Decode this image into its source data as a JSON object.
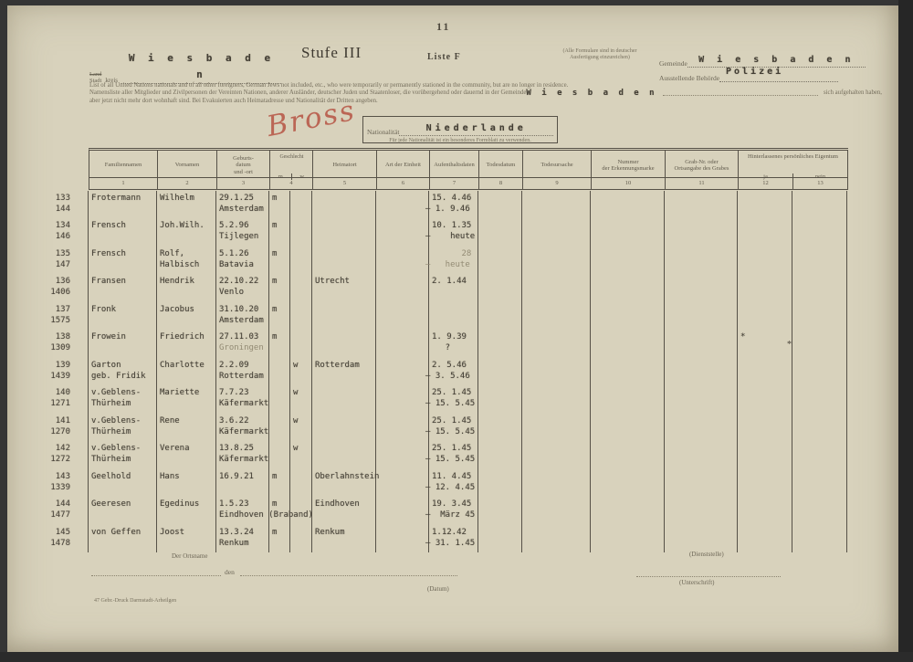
{
  "page": {
    "number": "11"
  },
  "header": {
    "region_struck": "Land",
    "region_label": "Stadt",
    "region_suffix": "kreis",
    "region_value": "W i e s b a d e n",
    "stufe_title": "Stufe III",
    "liste_label": "Liste F",
    "form_note_line1": "(Alle Formulare sind in deutscher",
    "form_note_line2": "Ausfertigung einzureichen)",
    "gemeinde_label": "Gemeinde",
    "gemeinde_value": "W i e s b a d e n",
    "behoerde_label": "Ausstellende Behörde",
    "behoerde_value": "Polizei"
  },
  "intro": {
    "line1": "List of all United Nations nationals and of all other foreigners, German Jews not included, etc., who were temporarily or permanently stationed in the community, but are no longer in residence.",
    "line2a": "Namensliste aller Mitglieder und Zivilpersonen der Vereinten Nationen, anderer Ausländer, deutscher Juden und Staatenloser, die vorübergehend oder dauernd in der Gemeinde",
    "line2_typed": "W i e s b a d e n",
    "line2b": "sich aufgehalten haben,",
    "line3": "aber jetzt nicht mehr dort wohnhaft sind. Bei Evakuierten auch Heimatadresse und Nationalität der Dritten angeben."
  },
  "handwriting": "Bross",
  "nationality_box": {
    "label": "Nationalität",
    "value": "Niederlande",
    "note": "Für jede Nationalität ist ein besonderes Formblatt zu verwenden."
  },
  "table": {
    "headers": {
      "col1": "Familiennamen",
      "col2": "Vornamen",
      "col3_l1": "Geburts-",
      "col3_l2": "datum",
      "col3_l3": "und -ort",
      "col4": "Geschlecht",
      "col4_m": "m",
      "col4_w": "w",
      "col5": "Heimatort",
      "col6": "Art der Einheit",
      "col7": "Aufenthaltsdaten",
      "col8": "Todesdatum",
      "col9": "Todesursache",
      "col10_l1": "Nummer",
      "col10_l2": "der Erkennungsmarke",
      "col11_l1": "Grab-Nr. oder",
      "col11_l2": "Ortsangabe des Grabes",
      "col12_13": "Hinterlassenes persönliches Eigentum",
      "col12": "ja",
      "col13": "nein"
    },
    "col_numbers": [
      "1",
      "2",
      "3",
      "4",
      "5",
      "6",
      "7",
      "8",
      "9",
      "10",
      "11",
      "12",
      "13"
    ],
    "rows": [
      {
        "nr1": "133",
        "nr2": "144",
        "name1": "Frotermann",
        "name2": "",
        "vorname1": "Wilhelm",
        "vorname2": "",
        "geb_datum": "29.1.25",
        "geb_ort": "Amsterdam",
        "sex": "m",
        "heimatort": "",
        "aufenthalt1": "15. 4.46",
        "aufenthalt2": "– 1. 9.46",
        "mark": "",
        "faded": []
      },
      {
        "nr1": "134",
        "nr2": "146",
        "name1": "Frensch",
        "name2": "",
        "vorname1": "Joh.Wilh.",
        "vorname2": "",
        "geb_datum": "5.2.96",
        "geb_ort": "Tijlegen",
        "sex": "m",
        "heimatort": "",
        "aufenthalt1": "10. 1.35",
        "aufenthalt2": "–    heute",
        "mark": "",
        "faded": []
      },
      {
        "nr1": "135",
        "nr2": "147",
        "name1": "Frensch",
        "name2": "",
        "vorname1": "Rolf,",
        "vorname2": "Halbisch",
        "geb_datum": "5.1.26",
        "geb_ort": "Batavia",
        "sex": "m",
        "heimatort": "",
        "aufenthalt1": "      28",
        "aufenthalt2": "–   heute",
        "mark": "",
        "faded": [
          "aufenthalt1",
          "aufenthalt2"
        ]
      },
      {
        "nr1": "136",
        "nr2": "1406",
        "name1": "Fransen",
        "name2": "",
        "vorname1": "Hendrik",
        "vorname2": "",
        "geb_datum": "22.10.22",
        "geb_ort": "Venlo",
        "sex": "m",
        "heimatort": "Utrecht",
        "aufenthalt1": "2. 1.44",
        "aufenthalt2": "",
        "mark": "",
        "faded": []
      },
      {
        "nr1": "137",
        "nr2": "1575",
        "name1": "Fronk",
        "name2": "",
        "vorname1": "Jacobus",
        "vorname2": "",
        "geb_datum": "31.10.20",
        "geb_ort": "Amsterdam",
        "sex": "m",
        "heimatort": "",
        "aufenthalt1": "",
        "aufenthalt2": "",
        "mark": "",
        "faded": []
      },
      {
        "nr1": "138",
        "nr2": "1309",
        "name1": "Frowein",
        "name2": "",
        "vorname1": "Friedrich",
        "vorname2": "",
        "geb_datum": "27.11.03",
        "geb_ort": "Groningen",
        "sex": "m",
        "heimatort": "",
        "aufenthalt1": "1. 9.39",
        "aufenthalt2": "    ?",
        "mark": "*",
        "faded": [
          "geb_ort"
        ]
      },
      {
        "nr1": "139",
        "nr2": "1439",
        "name1": "Garton",
        "name2": "geb. Fridik",
        "vorname1": "Charlotte",
        "vorname2": "",
        "geb_datum": "2.2.09",
        "geb_ort": "Rotterdam",
        "sex": "w",
        "heimatort": "Rotterdam",
        "aufenthalt1": "2. 5.46",
        "aufenthalt2": "– 3. 5.46",
        "mark": "",
        "faded": []
      },
      {
        "nr1": "140",
        "nr2": "1271",
        "name1": "v.Geblens-",
        "name2": "Thürheim",
        "vorname1": "Mariette",
        "vorname2": "",
        "geb_datum": "7.7.23",
        "geb_ort": "Käfermarkt",
        "sex": "w",
        "heimatort": "",
        "aufenthalt1": "25. 1.45",
        "aufenthalt2": "– 15. 5.45",
        "mark": "",
        "faded": []
      },
      {
        "nr1": "141",
        "nr2": "1270",
        "name1": "v.Geblens-",
        "name2": "Thürheim",
        "vorname1": "Rene",
        "vorname2": "",
        "geb_datum": "3.6.22",
        "geb_ort": "Käfermarkt",
        "sex": "w",
        "heimatort": "",
        "aufenthalt1": "25. 1.45",
        "aufenthalt2": "– 15. 5.45",
        "mark": "",
        "faded": []
      },
      {
        "nr1": "142",
        "nr2": "1272",
        "name1": "v.Geblens-",
        "name2": "Thürheim",
        "vorname1": "Verena",
        "vorname2": "",
        "geb_datum": "13.8.25",
        "geb_ort": "Käfermarkt",
        "sex": "w",
        "heimatort": "",
        "aufenthalt1": "25. 1.45",
        "aufenthalt2": "– 15. 5.45",
        "mark": "",
        "faded": []
      },
      {
        "nr1": "143",
        "nr2": "1339",
        "name1": "Geelhold",
        "name2": "",
        "vorname1": "Hans",
        "vorname2": "",
        "geb_datum": "16.9.21",
        "geb_ort": "",
        "sex": "m",
        "heimatort": "Oberlahnstein",
        "aufenthalt1": "11. 4.45",
        "aufenthalt2": "– 12. 4.45",
        "mark": "",
        "faded": []
      },
      {
        "nr1": "144",
        "nr2": "1477",
        "name1": "Geeresen",
        "name2": "",
        "vorname1": "Egedinus",
        "vorname2": "",
        "geb_datum": "1.5.23",
        "geb_ort": "Eindhoven (Braband)",
        "sex": "m",
        "heimatort": "Eindhoven",
        "aufenthalt1": "19. 3.45",
        "aufenthalt2": "–  März 45",
        "mark": "",
        "faded": []
      },
      {
        "nr1": "145",
        "nr2": "1478",
        "name1": "von Geffen",
        "name2": "",
        "vorname1": "Joost",
        "vorname2": "",
        "geb_datum": "13.3.24",
        "geb_ort": "Renkum",
        "sex": "m",
        "heimatort": "Renkum",
        "aufenthalt1": "1.12.42",
        "aufenthalt2": "– 31. 1.45",
        "mark": "",
        "faded": []
      }
    ]
  },
  "footer": {
    "ort_note": "Der Ortsname",
    "den_label": "den",
    "datum_note": "(Datum)",
    "dienst_note": "(Dienststelle)",
    "unterschrift_note": "(Unterschrift)",
    "imprint": "47  Gebr.-Druck  Darmstadt-Arheilgen"
  },
  "colors": {
    "paper": "#d8d2bc",
    "ink_typed": "#433e34",
    "ink_printed": "#5f594b",
    "handwriting_red": "#b24838",
    "scan_background": "#353535"
  }
}
